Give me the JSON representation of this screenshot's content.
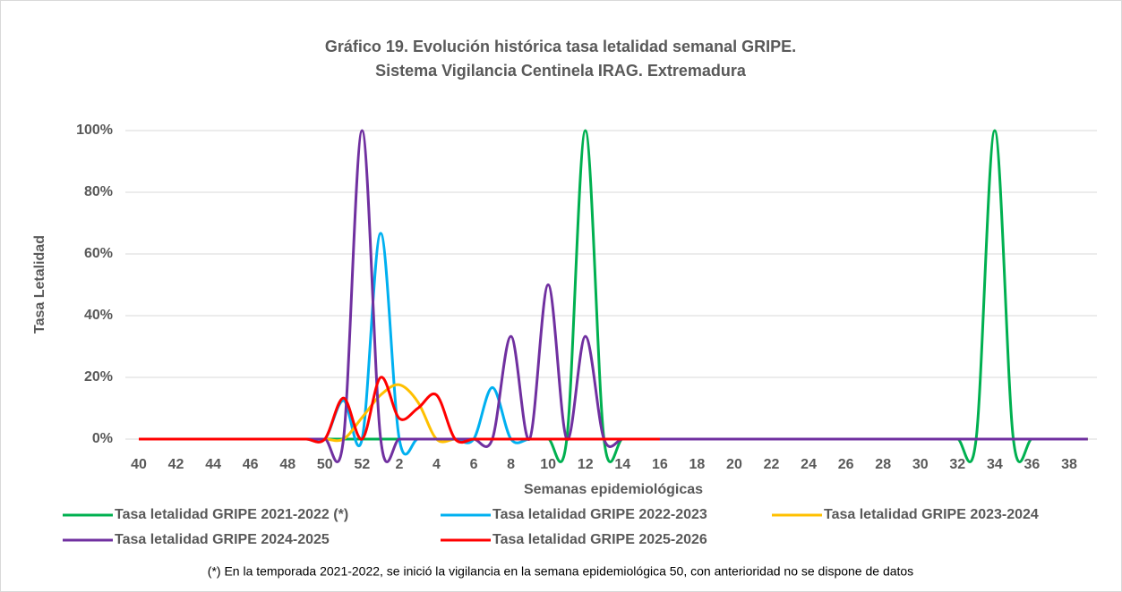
{
  "chart_data": {
    "type": "line",
    "title": "Gráfico 19. Evolución histórica tasa letalidad semanal GRIPE.",
    "subtitle": "Sistema  Vigilancia Centinela IRAG. Extremadura",
    "xlabel": "Semanas epidemiológicas",
    "ylabel": "Tasa Letalidad",
    "note": "(*) En la temporada 2021-2022, se inició la vigilancia en la semana epidemiológica 50, con anterioridad no se dispone de datos",
    "categories": [
      "40",
      null,
      "42",
      null,
      "44",
      null,
      "46",
      null,
      "48",
      null,
      "50",
      null,
      "52",
      null,
      "2",
      null,
      "4",
      null,
      "6",
      null,
      "8",
      null,
      "10",
      null,
      "12",
      null,
      "14",
      null,
      "16",
      null,
      "18",
      null,
      "20",
      null,
      "22",
      null,
      "24",
      null,
      "26",
      null,
      "28",
      null,
      "30",
      null,
      "32",
      null,
      "34",
      null,
      "36",
      null,
      "38",
      null
    ],
    "ylim": [
      0,
      100
    ],
    "yticks": [
      {
        "value": 0,
        "label": "0%"
      },
      {
        "value": 20,
        "label": "20%"
      },
      {
        "value": 40,
        "label": "40%"
      },
      {
        "value": 60,
        "label": "60%"
      },
      {
        "value": 80,
        "label": "80%"
      },
      {
        "value": 100,
        "label": "100%"
      }
    ],
    "grid": true,
    "legend": "bottom",
    "series": [
      {
        "name": "Tasa letalidad GRIPE 2021-2022 (*)",
        "color": "#00b050",
        "values": [
          null,
          null,
          null,
          null,
          null,
          null,
          null,
          null,
          null,
          null,
          0,
          0,
          0,
          0,
          0,
          0,
          0,
          0,
          0,
          0,
          0,
          0,
          0,
          0,
          100,
          0,
          0,
          0,
          0,
          0,
          0,
          0,
          0,
          0,
          0,
          0,
          0,
          0,
          0,
          0,
          0,
          0,
          0,
          0,
          0,
          0,
          100,
          0,
          0,
          0,
          0,
          0
        ]
      },
      {
        "name": "Tasa letalidad GRIPE 2022-2023",
        "color": "#00b0f0",
        "values": [
          0,
          0,
          0,
          0,
          0,
          0,
          0,
          0,
          0,
          0,
          0,
          12.5,
          0,
          66.7,
          0,
          0,
          0,
          0,
          0,
          16.7,
          0,
          0,
          0,
          0,
          0,
          0,
          0,
          0,
          0,
          0,
          0,
          0,
          0,
          0,
          0,
          0,
          0,
          0,
          0,
          0,
          0,
          0,
          0,
          0,
          0,
          0,
          0,
          0,
          0,
          0,
          0,
          0
        ]
      },
      {
        "name": "Tasa letalidad GRIPE 2023-2024",
        "color": "#ffc000",
        "values": [
          0,
          0,
          0,
          0,
          0,
          0,
          0,
          0,
          0,
          0,
          0,
          0,
          7,
          14.3,
          17.6,
          12,
          0,
          0,
          0,
          0,
          0,
          0,
          0,
          0,
          0,
          0,
          0,
          0,
          0,
          0,
          0,
          0,
          0,
          0,
          0,
          0,
          0,
          0,
          0,
          0,
          0,
          0,
          0,
          0,
          0,
          0,
          0,
          0,
          0,
          0,
          0,
          0
        ]
      },
      {
        "name": "Tasa letalidad GRIPE 2024-2025",
        "color": "#7030a0",
        "values": [
          0,
          0,
          0,
          0,
          0,
          0,
          0,
          0,
          0,
          0,
          0,
          0,
          100,
          0,
          0,
          0,
          0,
          0,
          0,
          0,
          33.3,
          0,
          50,
          0,
          33.3,
          0,
          0,
          0,
          0,
          0,
          0,
          0,
          0,
          0,
          0,
          0,
          0,
          0,
          0,
          0,
          0,
          0,
          0,
          0,
          0,
          0,
          0,
          0,
          0,
          0,
          0,
          0
        ]
      },
      {
        "name": "Tasa letalidad GRIPE 2025-2026",
        "color": "#ff0000",
        "values": [
          0,
          0,
          0,
          0,
          0,
          0,
          0,
          0,
          0,
          0,
          0,
          13.3,
          0,
          20,
          6.7,
          10,
          14.3,
          0,
          0,
          0,
          0,
          0,
          0,
          0,
          0,
          0,
          0,
          0,
          0,
          null,
          null,
          null,
          null,
          null,
          null,
          null,
          null,
          null,
          null,
          null,
          null,
          null,
          null,
          null,
          null,
          null,
          null,
          null,
          null,
          null,
          null,
          null
        ]
      }
    ]
  }
}
